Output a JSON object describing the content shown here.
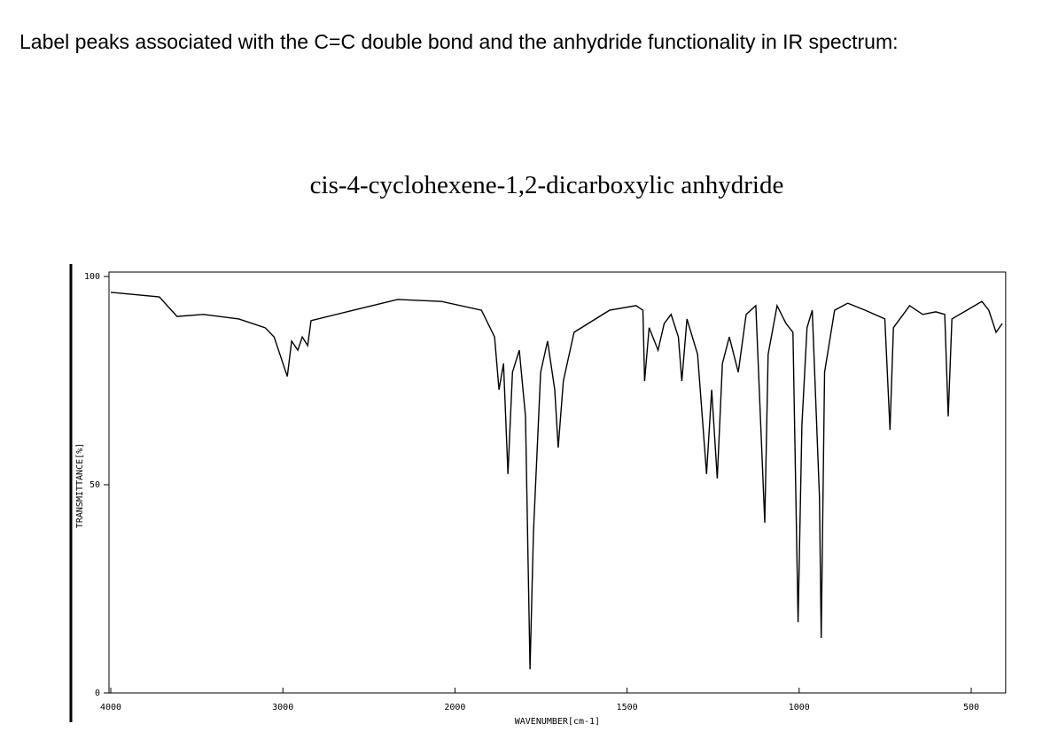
{
  "question": "Label peaks associated with the C=C double bond and the anhydride functionality in IR spectrum:",
  "chart_data": {
    "type": "line",
    "title": "cis-4-cyclohexene-1,2-dicarboxylic anhydride",
    "xlabel": "WAVENUMBER[cm-1]",
    "ylabel": "TRANSMITTANCE[%]",
    "color": "#000000",
    "xlim": [
      4000,
      400
    ],
    "xticks": [
      4000,
      3000,
      2000,
      1500,
      1000,
      500
    ],
    "ylim": [
      0,
      100
    ],
    "yticks": [
      0,
      50,
      100
    ],
    "x": [
      4000,
      3718,
      3615,
      3462,
      3256,
      3103,
      3051,
      2974,
      2949,
      2913,
      2887,
      2856,
      2836,
      2590,
      2333,
      2077,
      1923,
      1885,
      1872,
      1859,
      1846,
      1833,
      1813,
      1795,
      1782,
      1772,
      1751,
      1731,
      1710,
      1700,
      1685,
      1654,
      1551,
      1474,
      1454,
      1449,
      1436,
      1410,
      1392,
      1372,
      1351,
      1341,
      1326,
      1295,
      1269,
      1254,
      1238,
      1223,
      1203,
      1177,
      1154,
      1126,
      1100,
      1090,
      1064,
      1038,
      1018,
      1003,
      992,
      977,
      962,
      941,
      936,
      926,
      897,
      859,
      808,
      751,
      736,
      726,
      679,
      641,
      603,
      577,
      567,
      556,
      513,
      469,
      449,
      428,
      410
    ],
    "values": [
      96.2,
      95.1,
      90.4,
      90.9,
      89.8,
      87.7,
      85.5,
      76,
      84.5,
      82.3,
      85.5,
      83.4,
      89.4,
      91.9,
      94.5,
      94,
      91.9,
      85.5,
      72.8,
      79.1,
      52.6,
      77,
      82.3,
      66.4,
      5.7,
      38.7,
      77,
      84.5,
      72.8,
      58.9,
      74.9,
      86.6,
      91.9,
      93,
      91.9,
      74.9,
      87.7,
      82.3,
      88.7,
      90.9,
      85.5,
      74.9,
      89.8,
      81.3,
      52.6,
      72.8,
      51.5,
      79.1,
      85.5,
      77,
      90.9,
      93,
      40.9,
      81.3,
      93,
      88.7,
      86.6,
      17,
      64.3,
      87.7,
      91.9,
      47.2,
      13.2,
      77,
      91.9,
      93.6,
      91.9,
      89.8,
      63.2,
      87.7,
      93,
      90.9,
      91.5,
      90.9,
      66.4,
      89.8,
      91.9,
      94,
      91.9,
      86.6,
      88.7
    ]
  }
}
